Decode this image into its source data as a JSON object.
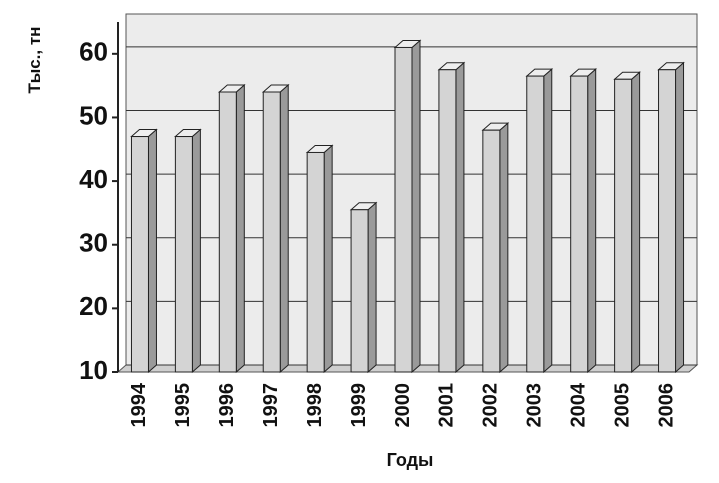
{
  "chart_data": {
    "type": "bar",
    "x_label": "Годы",
    "y_label": "Тыс., тн",
    "categories": [
      "1994",
      "1995",
      "1996",
      "1997",
      "1998",
      "1999",
      "2000",
      "2001",
      "2002",
      "2003",
      "2004",
      "2005",
      "2006"
    ],
    "values": [
      47,
      47,
      54,
      54,
      44.5,
      35.5,
      61,
      57.5,
      48,
      56.5,
      56.5,
      56,
      57.5
    ],
    "color": "#d4d4d4",
    "ylim": [
      10,
      65
    ],
    "yticks": [
      10,
      20,
      30,
      40,
      50,
      60
    ],
    "grid": true
  }
}
